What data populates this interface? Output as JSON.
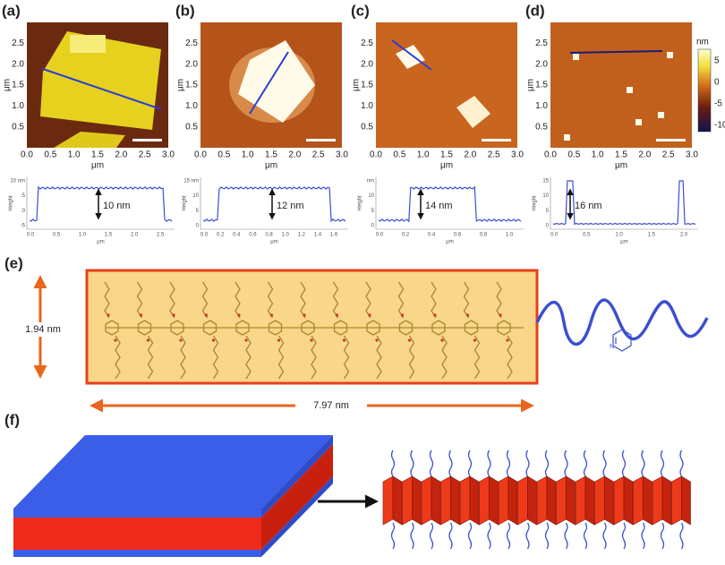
{
  "panels": [
    {
      "label": "(a)",
      "x_ticks": [
        "0.0",
        "0.5",
        "1.0",
        "1.5",
        "2.0",
        "2.5",
        "3.0"
      ],
      "y_ticks": [
        "2.5",
        "2.0",
        "1.5",
        "1.0",
        "0.5"
      ],
      "x_unit": "μm",
      "y_unit": "μm",
      "profile": {
        "y_label": "Height",
        "y_ticks": [
          "10 nm",
          "5",
          "0",
          "-5"
        ],
        "x_ticks": [
          "0.0",
          "0.5",
          "1.0",
          "1.5",
          "2.0",
          "2.5"
        ],
        "x_unit": "μm",
        "annotation": "10 nm"
      }
    },
    {
      "label": "(b)",
      "x_ticks": [
        "0.0",
        "0.5",
        "1.0",
        "1.5",
        "2.0",
        "2.5",
        "3.0"
      ],
      "y_ticks": [
        "2.5",
        "2.0",
        "1.5",
        "1.0",
        "0.5"
      ],
      "x_unit": "μm",
      "y_unit": "μm",
      "profile": {
        "y_label": "Height",
        "y_ticks": [
          "15 nm",
          "10",
          "5",
          "0"
        ],
        "x_ticks": [
          "0.0",
          "0.2",
          "0.4",
          "0.6",
          "0.8",
          "1.0",
          "1.2",
          "1.4",
          "1.6"
        ],
        "x_unit": "μm",
        "annotation": "12 nm"
      }
    },
    {
      "label": "(c)",
      "x_ticks": [
        "0.0",
        "0.5",
        "1.0",
        "1.5",
        "2.0",
        "2.5",
        "3.0"
      ],
      "y_ticks": [
        "2.5",
        "2.0",
        "1.5",
        "1.0",
        "0.5"
      ],
      "x_unit": "μm",
      "y_unit": "μm",
      "profile": {
        "y_label": "Height",
        "y_ticks": [
          "nm",
          "10",
          "5",
          "0"
        ],
        "x_ticks": [
          "0.0",
          "0.2",
          "0.4",
          "0.6",
          "0.8",
          "1.0"
        ],
        "x_unit": "μm",
        "annotation": "14 nm"
      }
    },
    {
      "label": "(d)",
      "x_ticks": [
        "0.0",
        "0.5",
        "1.0",
        "1.5",
        "2.0",
        "2.5",
        "3.0"
      ],
      "y_ticks": [
        "2.5",
        "2.0",
        "1.5",
        "1.0",
        "0.5"
      ],
      "x_unit": "μm",
      "y_unit": "μm",
      "profile": {
        "y_label": "Height",
        "y_ticks": [
          "15",
          "10",
          "5",
          "0"
        ],
        "x_ticks": [
          "0.0",
          "0.5",
          "1.0",
          "1.5",
          "2.0"
        ],
        "x_unit": "μm",
        "annotation": "16 nm"
      }
    }
  ],
  "colorbar": {
    "unit": "nm",
    "ticks": [
      "5",
      "0",
      "-5",
      "-10"
    ]
  },
  "panel_e": {
    "label": "(e)",
    "height": "1.94 nm",
    "length": "7.97 nm"
  },
  "panel_f": {
    "label": "(f)"
  }
}
